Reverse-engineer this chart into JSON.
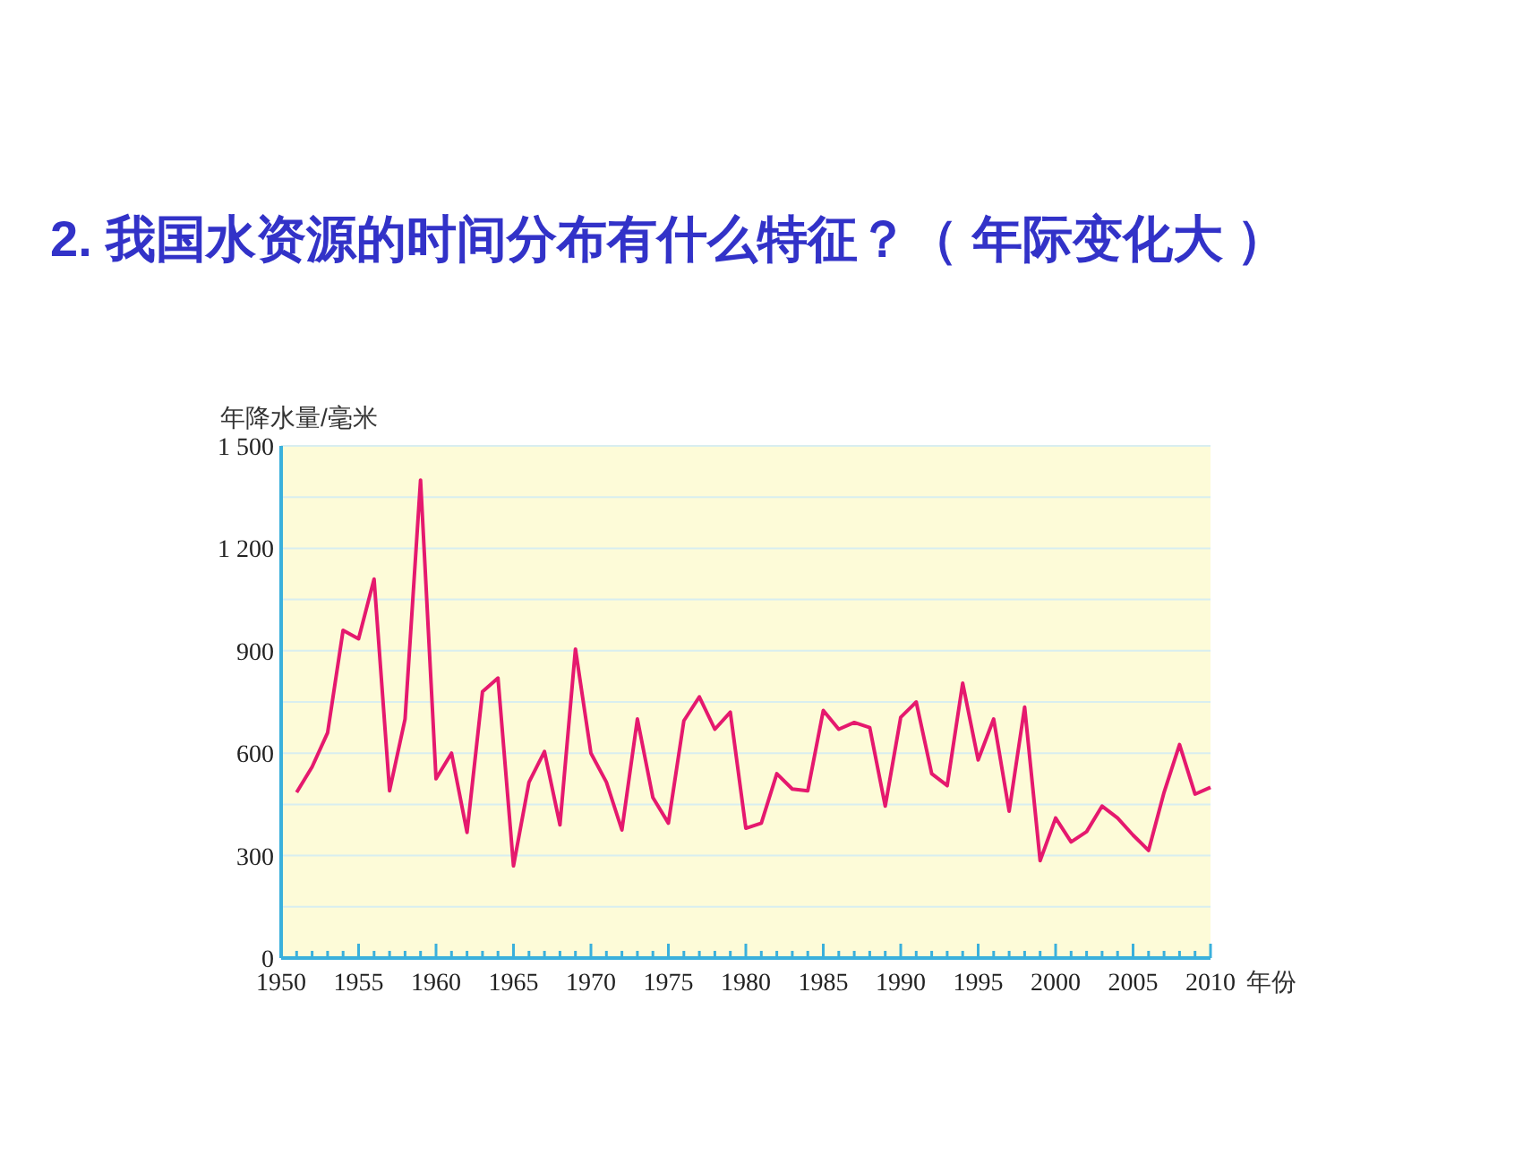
{
  "chart_data": {
    "type": "line",
    "title": "2. 我国水资源的时间分布有什么特征？（ 年际变化大 ）",
    "ylabel": "年降水量/毫米",
    "xlabel": "年份",
    "x": [
      1951,
      1952,
      1953,
      1954,
      1955,
      1956,
      1957,
      1958,
      1959,
      1960,
      1961,
      1962,
      1963,
      1964,
      1965,
      1966,
      1967,
      1968,
      1969,
      1970,
      1971,
      1972,
      1973,
      1974,
      1975,
      1976,
      1977,
      1978,
      1979,
      1980,
      1981,
      1982,
      1983,
      1984,
      1985,
      1986,
      1987,
      1988,
      1989,
      1990,
      1991,
      1992,
      1993,
      1994,
      1995,
      1996,
      1997,
      1998,
      1999,
      2000,
      2001,
      2002,
      2003,
      2004,
      2005,
      2006,
      2007,
      2008,
      2009,
      2010
    ],
    "series": [
      {
        "color": "#e5196e",
        "values": [
          485,
          560,
          660,
          960,
          935,
          1110,
          490,
          700,
          1400,
          525,
          600,
          368,
          780,
          820,
          270,
          515,
          605,
          390,
          905,
          600,
          515,
          375,
          700,
          470,
          395,
          695,
          765,
          670,
          720,
          380,
          395,
          540,
          495,
          490,
          725,
          670,
          690,
          675,
          445,
          705,
          750,
          540,
          505,
          805,
          580,
          700,
          430,
          735,
          285,
          410,
          340,
          370,
          445,
          410,
          360,
          315,
          485,
          625,
          480,
          500
        ]
      }
    ],
    "xlim": [
      1950,
      2010
    ],
    "xticks": [
      1950,
      {
        "value": 1951,
        "label": null
      },
      {
        "value": 1952,
        "label": null
      },
      {
        "value": 1953,
        "label": null
      },
      {
        "value": 1954,
        "label": null
      },
      1955,
      {
        "value": 1956,
        "label": null
      },
      {
        "value": 1957,
        "label": null
      },
      {
        "value": 1958,
        "label": null
      },
      {
        "value": 1959,
        "label": null
      },
      1960,
      {
        "value": 1961,
        "label": null
      },
      {
        "value": 1962,
        "label": null
      },
      {
        "value": 1963,
        "label": null
      },
      {
        "value": 1964,
        "label": null
      },
      1965,
      {
        "value": 1966,
        "label": null
      },
      {
        "value": 1967,
        "label": null
      },
      {
        "value": 1968,
        "label": null
      },
      {
        "value": 1969,
        "label": null
      },
      1970,
      {
        "value": 1971,
        "label": null
      },
      {
        "value": 1972,
        "label": null
      },
      {
        "value": 1973,
        "label": null
      },
      {
        "value": 1974,
        "label": null
      },
      1975,
      {
        "value": 1976,
        "label": null
      },
      {
        "value": 1977,
        "label": null
      },
      {
        "value": 1978,
        "label": null
      },
      {
        "value": 1979,
        "label": null
      },
      1980,
      {
        "value": 1981,
        "label": null
      },
      {
        "value": 1982,
        "label": null
      },
      {
        "value": 1983,
        "label": null
      },
      {
        "value": 1984,
        "label": null
      },
      1985,
      {
        "value": 1986,
        "label": null
      },
      {
        "value": 1987,
        "label": null
      },
      {
        "value": 1988,
        "label": null
      },
      {
        "value": 1989,
        "label": null
      },
      1990,
      {
        "value": 1991,
        "label": null
      },
      {
        "value": 1992,
        "label": null
      },
      {
        "value": 1993,
        "label": null
      },
      {
        "value": 1994,
        "label": null
      },
      1995,
      {
        "value": 1996,
        "label": null
      },
      {
        "value": 1997,
        "label": null
      },
      {
        "value": 1998,
        "label": null
      },
      {
        "value": 1999,
        "label": null
      },
      2000,
      {
        "value": 2001,
        "label": null
      },
      {
        "value": 2002,
        "label": null
      },
      {
        "value": 2003,
        "label": null
      },
      {
        "value": 2004,
        "label": null
      },
      2005,
      {
        "value": 2006,
        "label": null
      },
      {
        "value": 2007,
        "label": null
      },
      {
        "value": 2008,
        "label": null
      },
      {
        "value": 2009,
        "label": null
      },
      2010
    ],
    "ylim": [
      0,
      1500
    ],
    "yticks": [
      0,
      {
        "value": 150,
        "label": null
      },
      300,
      {
        "value": 450,
        "label": null
      },
      600,
      {
        "value": 750,
        "label": null
      },
      900,
      {
        "value": 1050,
        "label": null
      },
      {
        "value": 1200,
        "label": "1 200"
      },
      {
        "value": 1350,
        "label": null
      },
      {
        "value": 1500,
        "label": "1 500"
      }
    ],
    "grid": "y",
    "marker": "none",
    "line_style": "solid"
  }
}
